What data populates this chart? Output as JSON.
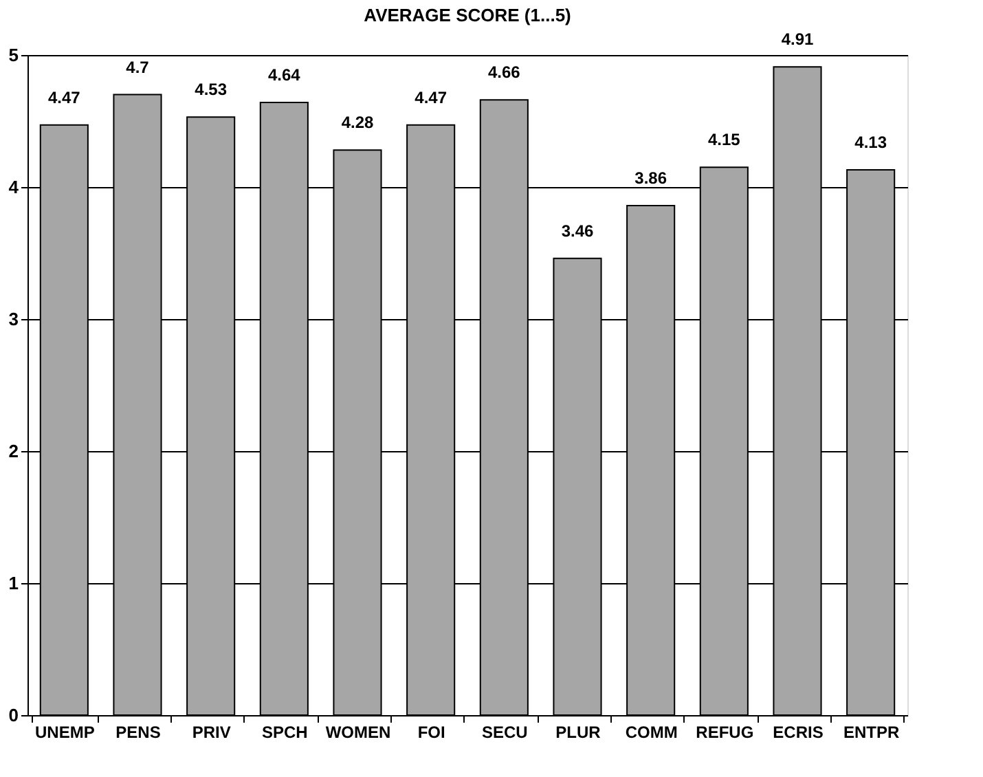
{
  "chart_data": {
    "type": "bar",
    "title": "AVERAGE SCORE (1...5)",
    "categories": [
      "UNEMP",
      "PENS",
      "PRIV",
      "SPCH",
      "WOMEN",
      "FOI",
      "SECU",
      "PLUR",
      "COMM",
      "REFUG",
      "ECRIS",
      "ENTPR"
    ],
    "values": [
      4.47,
      4.7,
      4.53,
      4.64,
      4.28,
      4.47,
      4.66,
      3.46,
      3.86,
      4.15,
      4.91,
      4.13
    ],
    "color": "#a6a6a6",
    "ylim": [
      0,
      5
    ],
    "yticks": [
      0,
      1,
      2,
      3,
      4,
      5
    ],
    "grid": "y",
    "data_labels": true
  }
}
